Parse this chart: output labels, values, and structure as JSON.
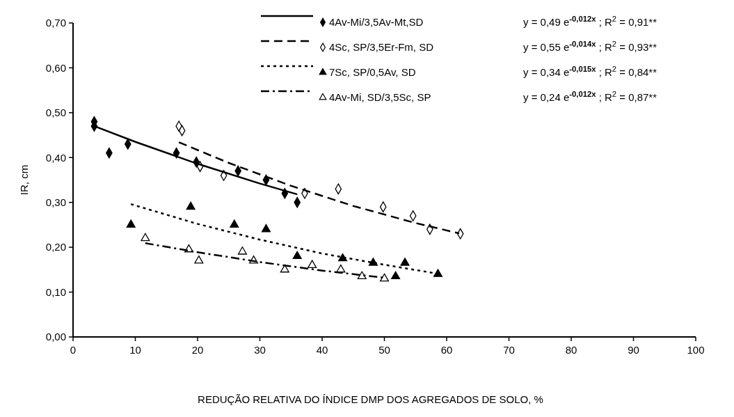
{
  "chart_data": {
    "type": "scatter",
    "xlabel": "REDUÇÃO RELATIVA DO ÍNDICE DMP DOS AGREGADOS DE SOLO, %",
    "ylabel": "IR, cm",
    "xlim": [
      0,
      100
    ],
    "xticks": [
      0,
      10,
      20,
      30,
      40,
      50,
      60,
      70,
      80,
      90,
      100
    ],
    "ylim": [
      0,
      0.7
    ],
    "yticks": [
      {
        "value": 0,
        "label": "0,00"
      },
      {
        "value": 0.1,
        "label": "0,10"
      },
      {
        "value": 0.2,
        "label": "0,20"
      },
      {
        "value": 0.3,
        "label": "0,30"
      },
      {
        "value": 0.4,
        "label": "0,40"
      },
      {
        "value": 0.5,
        "label": "0,50"
      },
      {
        "value": 0.6,
        "label": "0,60"
      },
      {
        "value": 0.7,
        "label": "0,70"
      }
    ],
    "grid": false,
    "legend": "top right",
    "annotations": [
      "y = 0,49 e$^{-0,012x}$ ; R$^{2}$ = 0,91**",
      "y = 0,55 e$^{-0,014x}$ ; R$^{2}$ = 0,93**",
      "y = 0,34 e$^{-0,015x}$ ; R$^{2}$ = 0,84**",
      "y = 0,24 e$^{-0,012x}$ ; R$^{2}$ = 0,87**"
    ],
    "series": [
      {
        "name": "4Av-Mi/3,5Av-Mt,SD",
        "color": "#000000",
        "marker": "diamond",
        "x": [
          3.4,
          3.4,
          5.8,
          8.8,
          16.6,
          19.8,
          26.5,
          31,
          34,
          36
        ],
        "values": [
          0.48,
          0.47,
          0.41,
          0.43,
          0.41,
          0.39,
          0.37,
          0.35,
          0.32,
          0.3
        ]
      },
      {
        "name": "4Sc, SP/3,5Er-Fm, SD",
        "color": "#ffffff",
        "marker": "diamond",
        "x": [
          17,
          17.5,
          20.4,
          24.2,
          37.2,
          42.6,
          49.8,
          54.6,
          57.3,
          62.2
        ],
        "values": [
          0.47,
          0.46,
          0.38,
          0.36,
          0.32,
          0.33,
          0.29,
          0.27,
          0.24,
          0.23
        ]
      },
      {
        "name": "7Sc, SP/0,5Av, SD",
        "color": "#000000",
        "marker": "triangle",
        "x": [
          9.3,
          18.9,
          25.9,
          31,
          36,
          43.3,
          48.2,
          51.8,
          53.3,
          58.6
        ],
        "values": [
          0.25,
          0.29,
          0.25,
          0.24,
          0.18,
          0.175,
          0.165,
          0.135,
          0.165,
          0.14
        ]
      },
      {
        "name": "4Av-Mi, SD/3,5Sc, SP",
        "color": "#ffffff",
        "marker": "triangle",
        "x": [
          11.6,
          18.6,
          20.2,
          27.2,
          29,
          34,
          38.4,
          43,
          46.4,
          50
        ],
        "values": [
          0.22,
          0.195,
          0.17,
          0.19,
          0.17,
          0.15,
          0.16,
          0.15,
          0.135,
          0.13
        ]
      },
      {
        "type": "line",
        "color": "#000000",
        "line_style": "solid",
        "x": [
          3.4,
          10,
          20,
          30,
          36
        ],
        "values": [
          0.47,
          0.435,
          0.386,
          0.342,
          0.318
        ]
      },
      {
        "type": "line",
        "color": "#000000",
        "line_style": "dashed",
        "x": [
          17,
          25,
          35,
          45,
          55,
          62
        ],
        "values": [
          0.434,
          0.388,
          0.337,
          0.292,
          0.254,
          0.231
        ]
      },
      {
        "type": "line",
        "color": "#000000",
        "line_style": "dotted",
        "x": [
          9.3,
          20,
          30,
          40,
          50,
          58.6
        ],
        "values": [
          0.296,
          0.252,
          0.217,
          0.186,
          0.161,
          0.141
        ]
      },
      {
        "type": "line",
        "color": "#000000",
        "line_style": "dashdot",
        "x": [
          11.6,
          20,
          30,
          40,
          50
        ],
        "values": [
          0.209,
          0.189,
          0.167,
          0.148,
          0.132
        ]
      }
    ]
  }
}
